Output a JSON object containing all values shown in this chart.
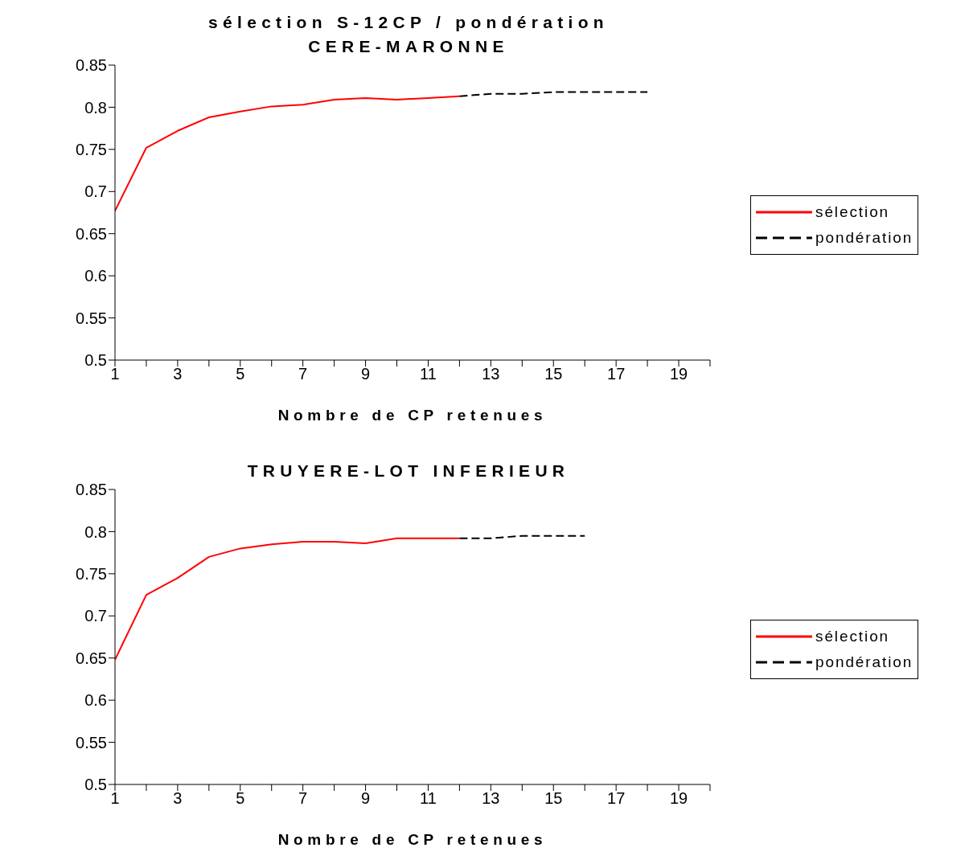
{
  "chart_data": [
    {
      "type": "line",
      "title": "sélection S-12CP / pondération",
      "subtitle": "CERE-MARONNE",
      "xlabel": "Nombre de CP retenues",
      "series": [
        {
          "name": "sélection",
          "color": "#ff0000",
          "line_style": "solid",
          "x": [
            1,
            2,
            3,
            4,
            5,
            6,
            7,
            8,
            9,
            10,
            11,
            12
          ],
          "values": [
            0.677,
            0.752,
            0.772,
            0.788,
            0.795,
            0.801,
            0.803,
            0.809,
            0.811,
            0.809,
            0.811,
            0.813
          ]
        },
        {
          "name": "pondération",
          "color": "#000000",
          "line_style": "dashed",
          "x": [
            12,
            13,
            14,
            15,
            16,
            17,
            18
          ],
          "values": [
            0.813,
            0.816,
            0.816,
            0.818,
            0.818,
            0.818,
            0.818
          ]
        }
      ],
      "xlim": [
        1,
        20
      ],
      "xticks": [
        1,
        {
          "value": 2,
          "label": null
        },
        3,
        {
          "value": 4,
          "label": null
        },
        5,
        {
          "value": 6,
          "label": null
        },
        7,
        {
          "value": 8,
          "label": null
        },
        9,
        {
          "value": 10,
          "label": null
        },
        11,
        {
          "value": 12,
          "label": null
        },
        13,
        {
          "value": 14,
          "label": null
        },
        15,
        {
          "value": 16,
          "label": null
        },
        17,
        {
          "value": 18,
          "label": null
        },
        19,
        {
          "value": 20,
          "label": null
        }
      ],
      "ylim": [
        0.5,
        0.85
      ],
      "yticks": [
        0.5,
        0.55,
        0.6,
        0.65,
        0.7,
        0.75,
        0.8,
        0.85
      ],
      "grid": false,
      "legend": "right",
      "marker": "none"
    },
    {
      "type": "line",
      "title": "TRUYERE-LOT INFERIEUR",
      "xlabel": "Nombre de CP retenues",
      "series": [
        {
          "name": "sélection",
          "color": "#ff0000",
          "line_style": "solid",
          "x": [
            1,
            2,
            3,
            4,
            5,
            6,
            7,
            8,
            9,
            10,
            11,
            12
          ],
          "values": [
            0.648,
            0.725,
            0.745,
            0.77,
            0.78,
            0.785,
            0.788,
            0.788,
            0.786,
            0.792,
            0.792,
            0.792
          ]
        },
        {
          "name": "pondération",
          "color": "#000000",
          "line_style": "dashed",
          "x": [
            12,
            13,
            14,
            15,
            16
          ],
          "values": [
            0.792,
            0.792,
            0.795,
            0.795,
            0.795
          ]
        }
      ],
      "xlim": [
        1,
        20
      ],
      "xticks": [
        1,
        {
          "value": 2,
          "label": null
        },
        3,
        {
          "value": 4,
          "label": null
        },
        5,
        {
          "value": 6,
          "label": null
        },
        7,
        {
          "value": 8,
          "label": null
        },
        9,
        {
          "value": 10,
          "label": null
        },
        11,
        {
          "value": 12,
          "label": null
        },
        13,
        {
          "value": 14,
          "label": null
        },
        15,
        {
          "value": 16,
          "label": null
        },
        17,
        {
          "value": 18,
          "label": null
        },
        19,
        {
          "value": 20,
          "label": null
        }
      ],
      "ylim": [
        0.5,
        0.85
      ],
      "yticks": [
        0.5,
        0.55,
        0.6,
        0.65,
        0.7,
        0.75,
        0.8,
        0.85
      ],
      "grid": false,
      "legend": "right",
      "marker": "none"
    }
  ]
}
